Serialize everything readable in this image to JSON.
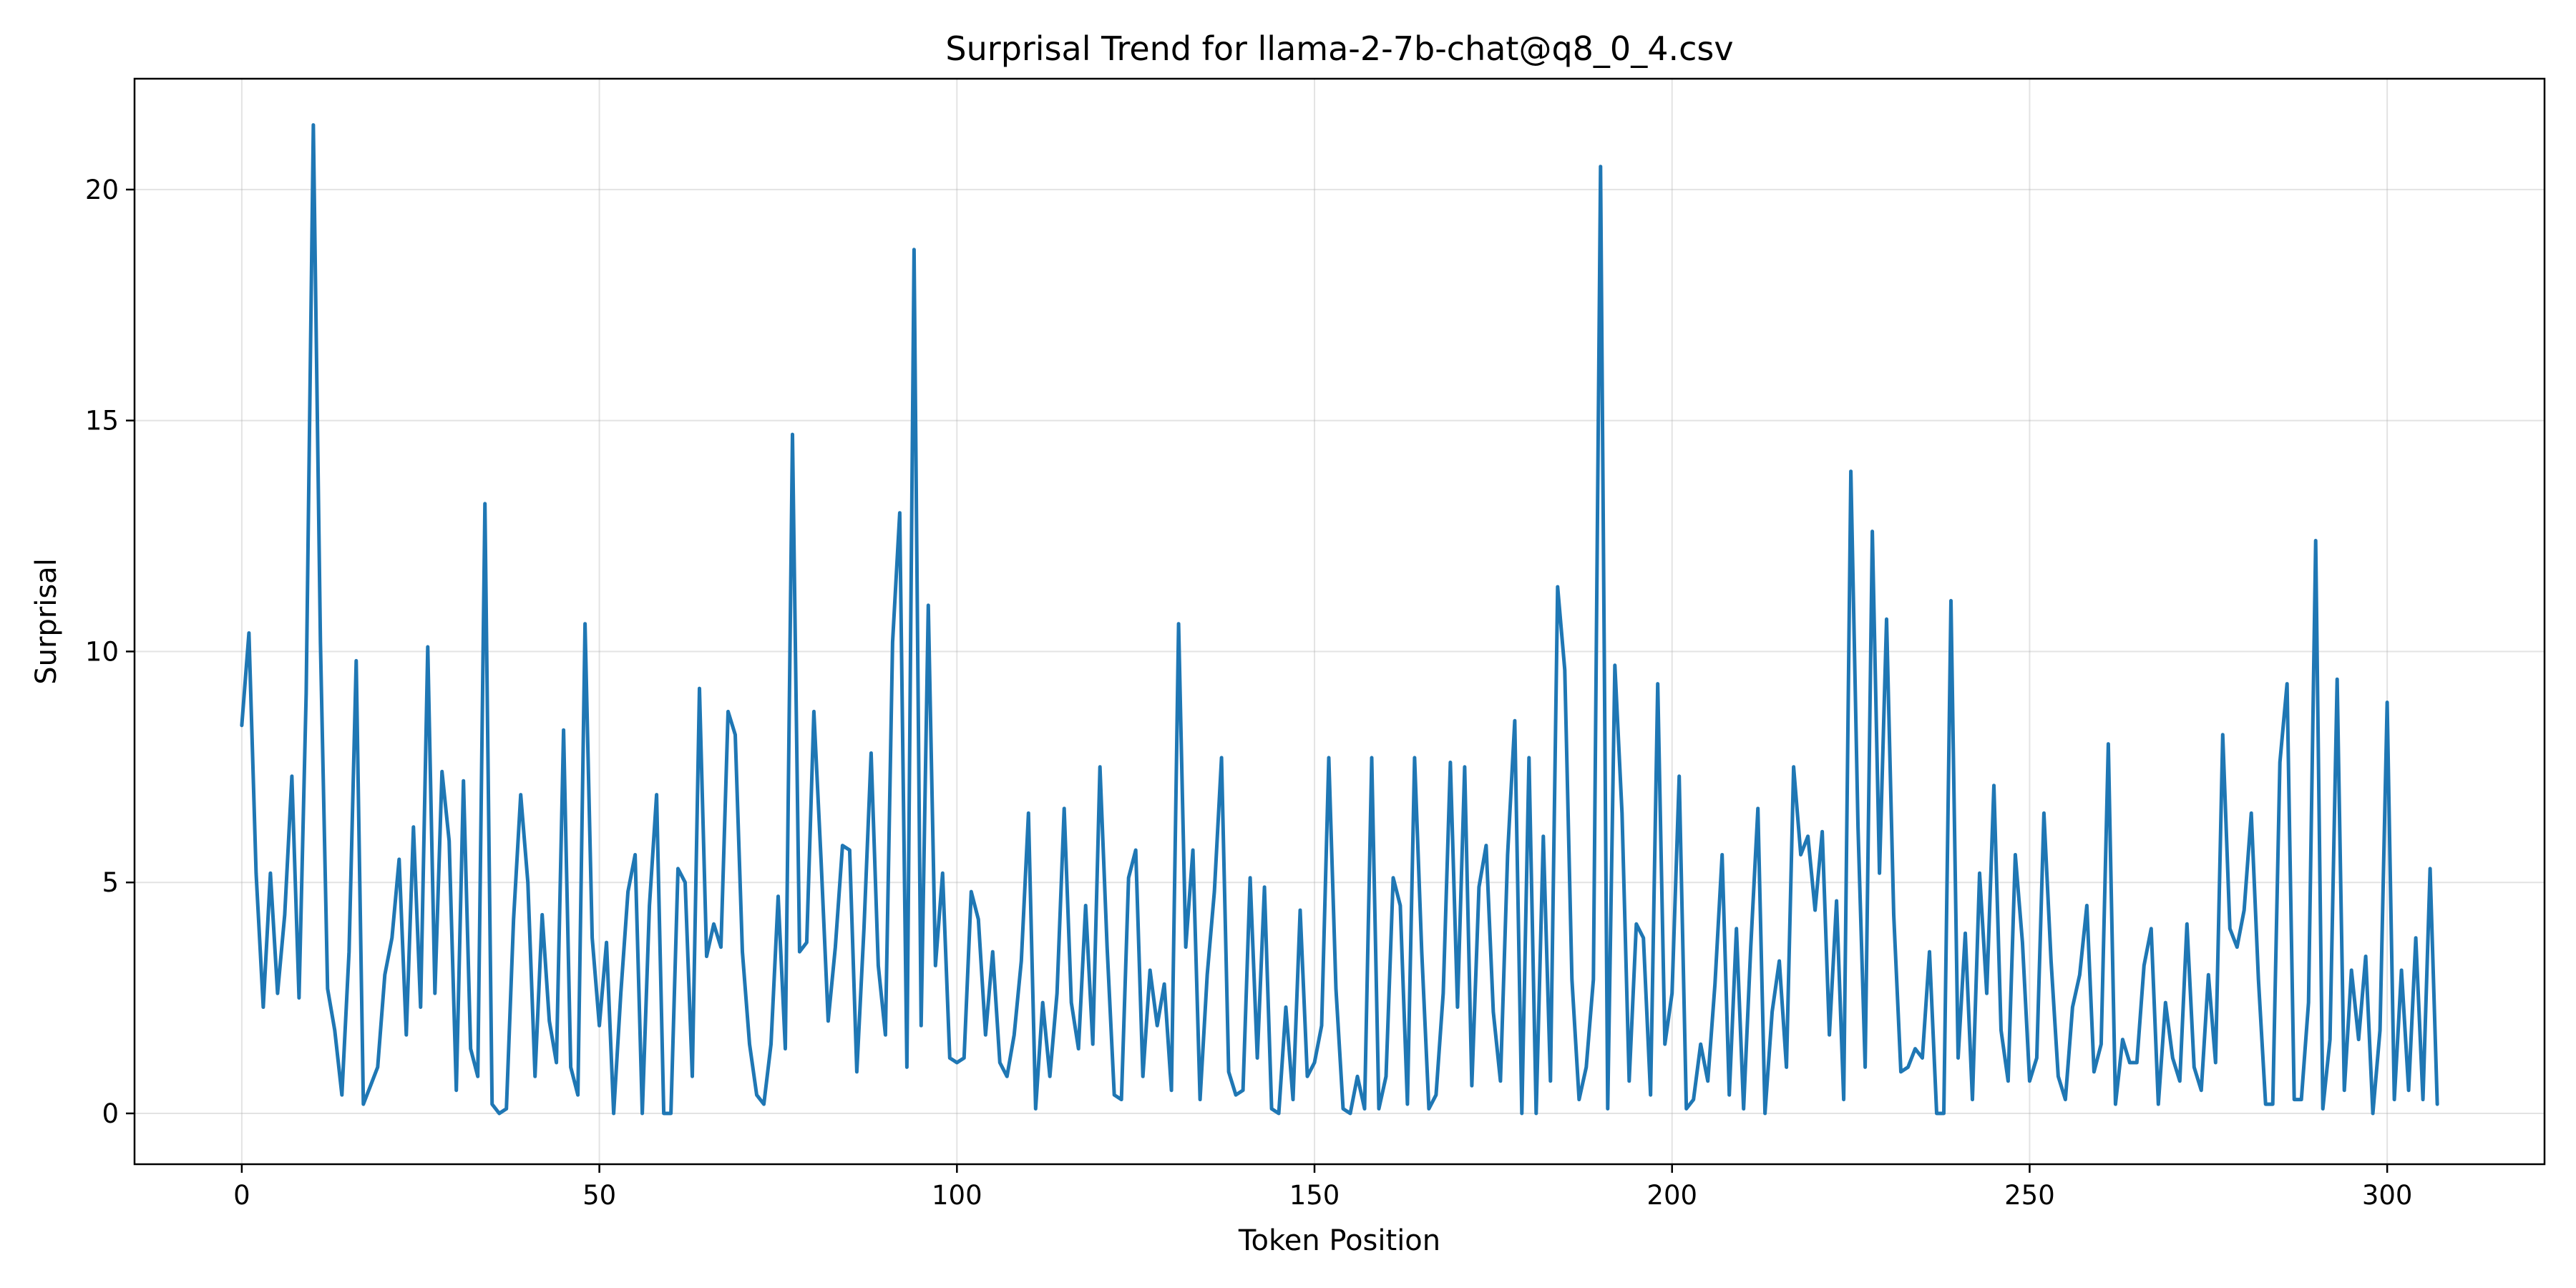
{
  "chart_data": {
    "type": "line",
    "title": "Surprisal Trend for llama-2-7b-chat@q8_0_4.csv",
    "xlabel": "Token Position",
    "ylabel": "Surprisal",
    "xlim": [
      -15,
      322
    ],
    "ylim": [
      -1.1,
      22.4
    ],
    "xticks": [
      0,
      50,
      100,
      150,
      200,
      250,
      300
    ],
    "yticks": [
      0,
      5,
      10,
      15,
      20
    ],
    "grid": true,
    "line_color": "#1f77b4",
    "series": [
      {
        "x_start": 0,
        "values": [
          8.4,
          10.4,
          5.2,
          2.3,
          5.2,
          2.6,
          4.3,
          7.3,
          2.5,
          9.1,
          21.4,
          10.2,
          2.7,
          1.8,
          0.4,
          3.5,
          9.8,
          0.2,
          0.6,
          1.0,
          3.0,
          3.8,
          5.5,
          1.7,
          6.2,
          2.3,
          10.1,
          2.6,
          7.4,
          5.9,
          0.5,
          7.2,
          1.4,
          0.8,
          13.2,
          0.2,
          0.0,
          0.1,
          4.2,
          6.9,
          5.0,
          0.8,
          4.3,
          2.0,
          1.1,
          8.3,
          1.0,
          0.4,
          10.6,
          3.8,
          1.9,
          3.7,
          0.0,
          2.6,
          4.8,
          5.6,
          0.0,
          4.5,
          6.9,
          0.0,
          0.0,
          5.3,
          5.0,
          0.8,
          9.2,
          3.4,
          4.1,
          3.6,
          8.7,
          8.2,
          3.5,
          1.5,
          0.4,
          0.2,
          1.5,
          4.7,
          1.4,
          14.7,
          3.5,
          3.7,
          8.7,
          5.5,
          2.0,
          3.6,
          5.8,
          5.7,
          0.9,
          4.0,
          7.8,
          3.2,
          1.7,
          10.2,
          13.0,
          1.0,
          18.7,
          1.9,
          11.0,
          3.2,
          5.2,
          1.2,
          1.1,
          1.2,
          4.8,
          4.2,
          1.7,
          3.5,
          1.1,
          0.8,
          1.7,
          3.3,
          6.5,
          0.1,
          2.4,
          0.8,
          2.6,
          6.6,
          2.4,
          1.4,
          4.5,
          1.5,
          7.5,
          3.6,
          0.4,
          0.3,
          5.1,
          5.7,
          0.8,
          3.1,
          1.9,
          2.8,
          0.5,
          10.6,
          3.6,
          5.7,
          0.3,
          3.0,
          4.8,
          7.7,
          0.9,
          0.4,
          0.5,
          5.1,
          1.2,
          4.9,
          0.1,
          0.0,
          2.3,
          0.3,
          4.4,
          0.8,
          1.1,
          1.9,
          7.7,
          2.7,
          0.1,
          0.0,
          0.8,
          0.1,
          7.7,
          0.1,
          0.8,
          5.1,
          4.5,
          0.2,
          7.7,
          3.5,
          0.1,
          0.4,
          2.6,
          7.6,
          2.3,
          7.5,
          0.6,
          4.9,
          5.8,
          2.2,
          0.7,
          5.6,
          8.5,
          0.0,
          7.7,
          0.0,
          6.0,
          0.7,
          11.4,
          9.6,
          2.9,
          0.3,
          1.0,
          2.9,
          20.5,
          0.1,
          9.7,
          6.5,
          0.7,
          4.1,
          3.8,
          0.4,
          9.3,
          1.5,
          2.6,
          7.3,
          0.1,
          0.3,
          1.5,
          0.7,
          2.8,
          5.6,
          0.4,
          4.0,
          0.1,
          3.6,
          6.6,
          0.0,
          2.2,
          3.3,
          1.0,
          7.5,
          5.6,
          6.0,
          4.4,
          6.1,
          1.7,
          4.6,
          0.3,
          13.9,
          6.2,
          1.0,
          12.6,
          5.2,
          10.7,
          4.3,
          0.9,
          1.0,
          1.4,
          1.2,
          3.5,
          0.0,
          0.0,
          11.1,
          1.2,
          3.9,
          0.3,
          5.2,
          2.6,
          7.1,
          1.8,
          0.7,
          5.6,
          3.7,
          0.7,
          1.2,
          6.5,
          3.3,
          0.8,
          0.3,
          2.3,
          3.0,
          4.5,
          0.9,
          1.5,
          8.0,
          0.2,
          1.6,
          1.1,
          1.1,
          3.2,
          4.0,
          0.2,
          2.4,
          1.2,
          0.7,
          4.1,
          1.0,
          0.5,
          3.0,
          1.1,
          8.2,
          4.0,
          3.6,
          4.4,
          6.5,
          2.9,
          0.2,
          0.2,
          7.6,
          9.3,
          0.3,
          0.3,
          2.4,
          12.4,
          0.1,
          1.6,
          9.4,
          0.5,
          3.1,
          1.6,
          3.4,
          0.0,
          1.8,
          8.9,
          0.3,
          3.1,
          0.5,
          3.8,
          0.3,
          5.3,
          0.2
        ]
      }
    ]
  }
}
